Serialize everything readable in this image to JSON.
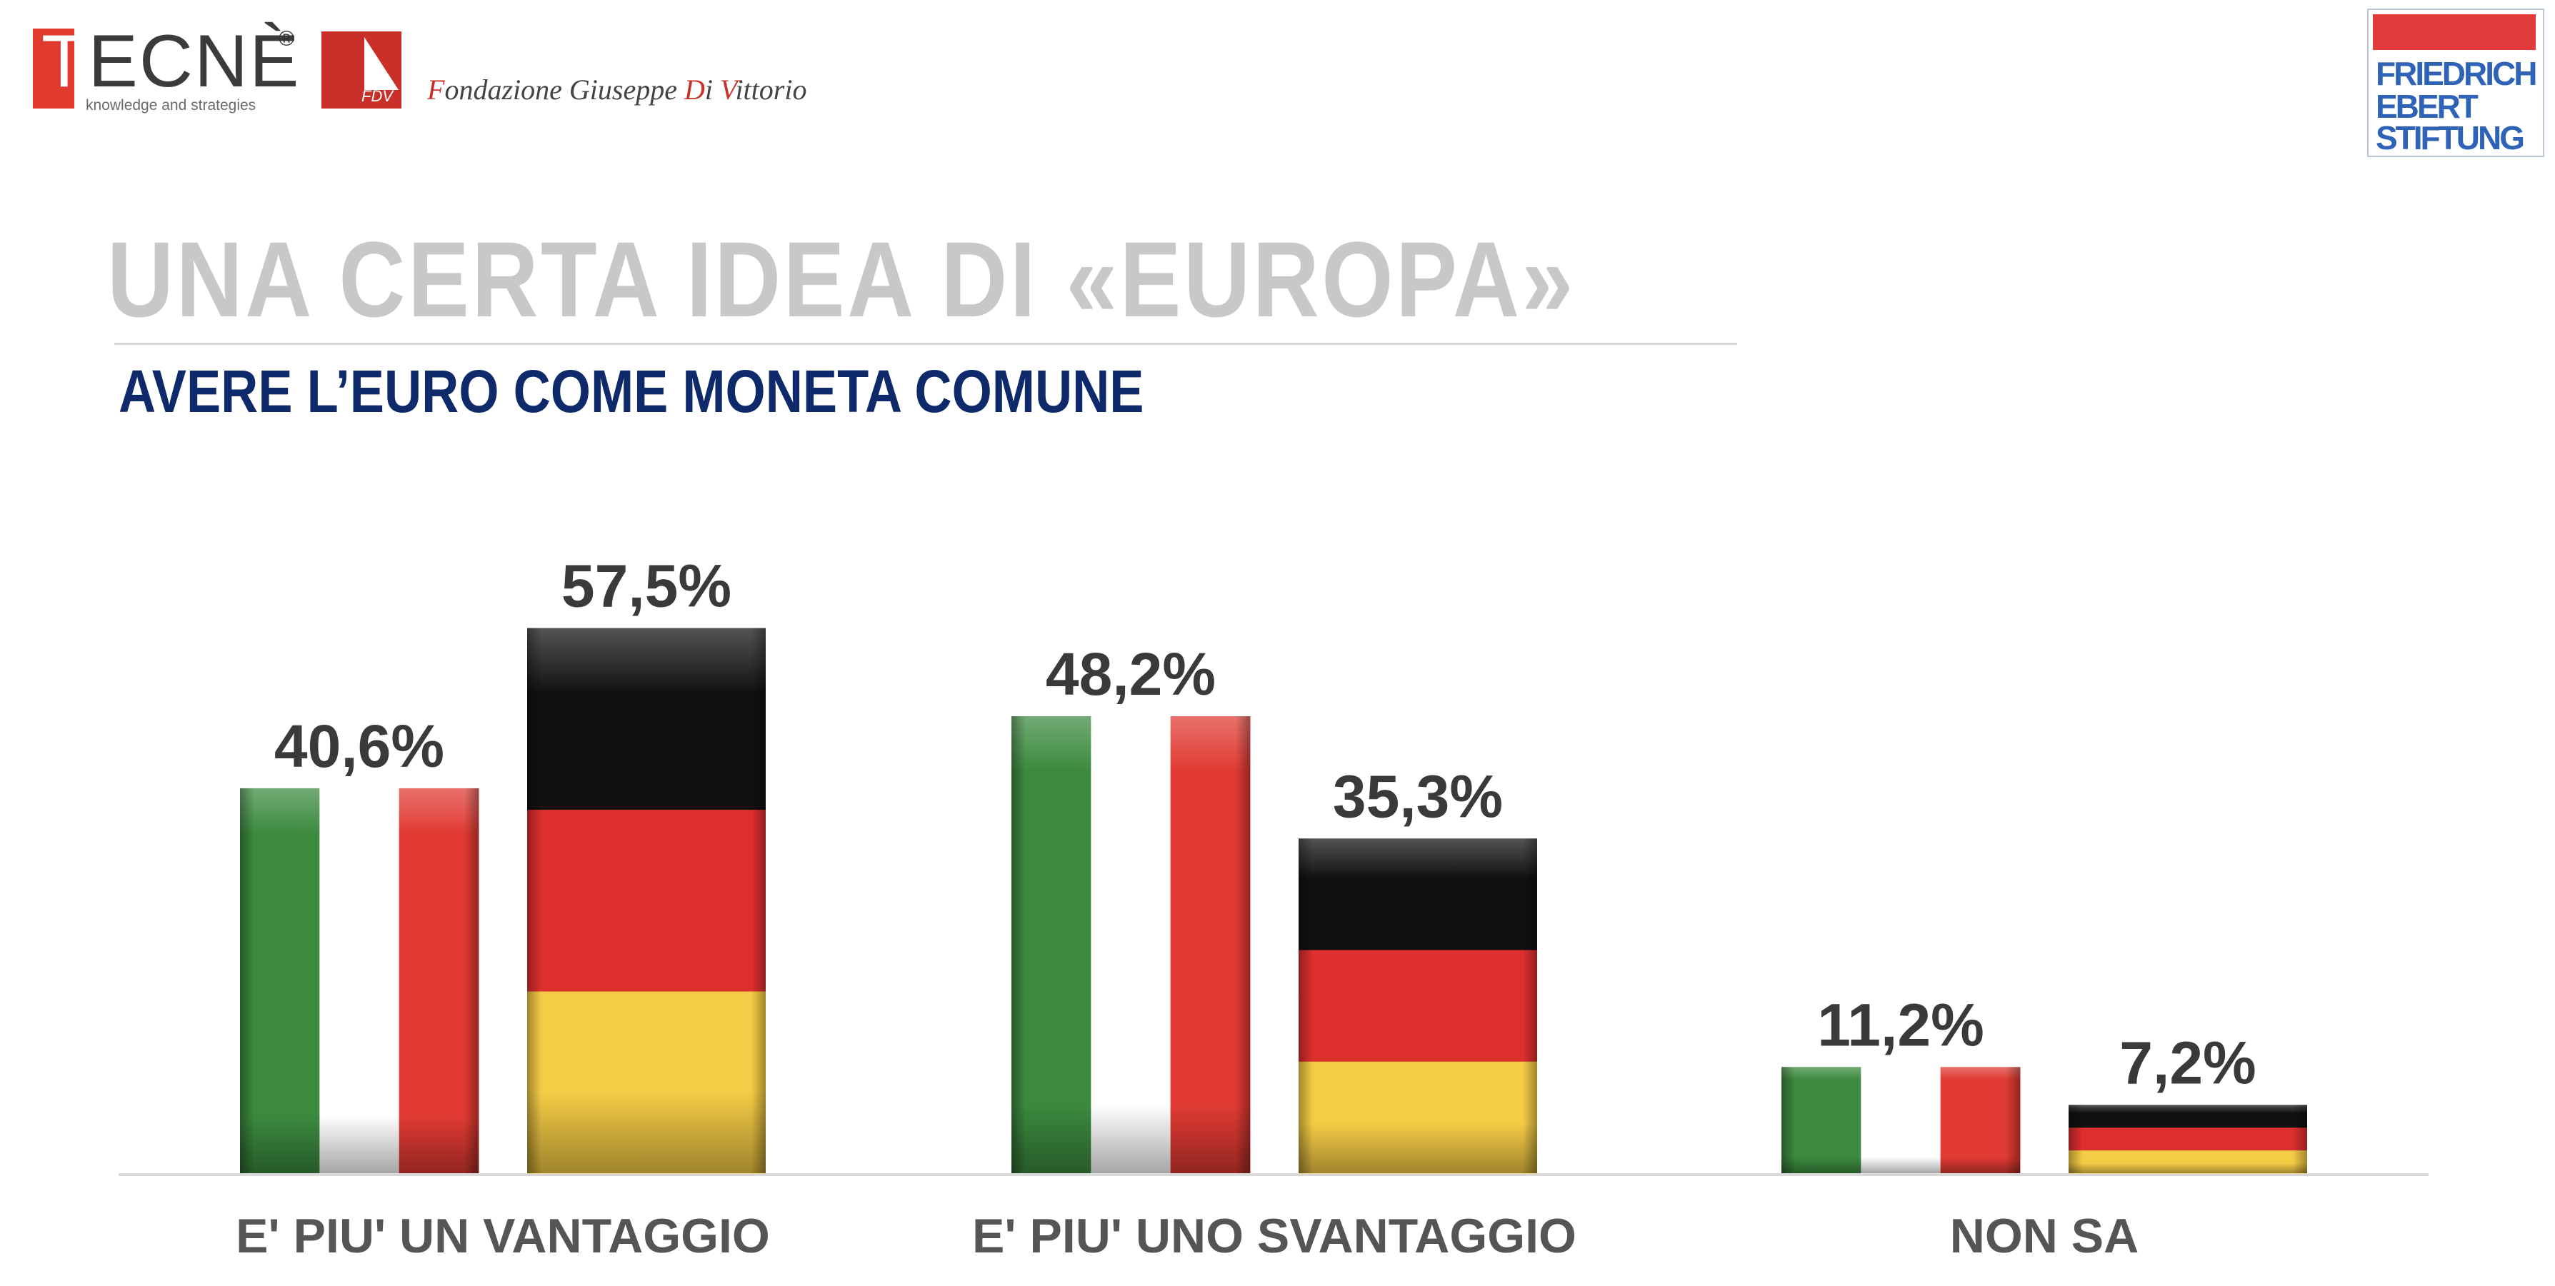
{
  "header": {
    "tecne": {
      "logo_text": "TECNÈ",
      "registered": "®",
      "tagline": "knowledge and strategies"
    },
    "fdv": {
      "logo_text": "FDV",
      "name_parts": [
        "F",
        "ondazione Giuseppe ",
        "D",
        "i ",
        "V",
        "ittorio"
      ]
    },
    "fes": {
      "lines": [
        "FRIEDRICH",
        "EBERT",
        "STIFTUNG"
      ]
    }
  },
  "title": "UNA CERTA IDEA DI «EUROPA»",
  "subtitle": "AVERE L’EURO COME MONETA COMUNE",
  "colors": {
    "italy": [
      "#3b8a3e",
      "#ffffff",
      "#e03a32"
    ],
    "germany": [
      "#111111",
      "#de2f2f",
      "#f5cc45"
    ],
    "label": "#3a3a3a",
    "category": "#555555",
    "title": "#c8c8c8",
    "subtitle": "#0f2a6b"
  },
  "chart_data": {
    "type": "bar",
    "categories": [
      "E' PIU' UN VANTAGGIO",
      "E' PIU' UNO SVANTAGGIO",
      "NON SA"
    ],
    "series": [
      {
        "flag": "italy",
        "values": [
          40.6,
          48.2,
          11.2
        ],
        "labels": [
          "40,6%",
          "48,2%",
          "11,2%"
        ]
      },
      {
        "flag": "germany",
        "values": [
          57.5,
          35.3,
          7.2
        ],
        "labels": [
          "57,5%",
          "35,3%",
          "7,2%"
        ]
      }
    ],
    "ylim": [
      0,
      65
    ],
    "grid": false,
    "legend": "none"
  }
}
